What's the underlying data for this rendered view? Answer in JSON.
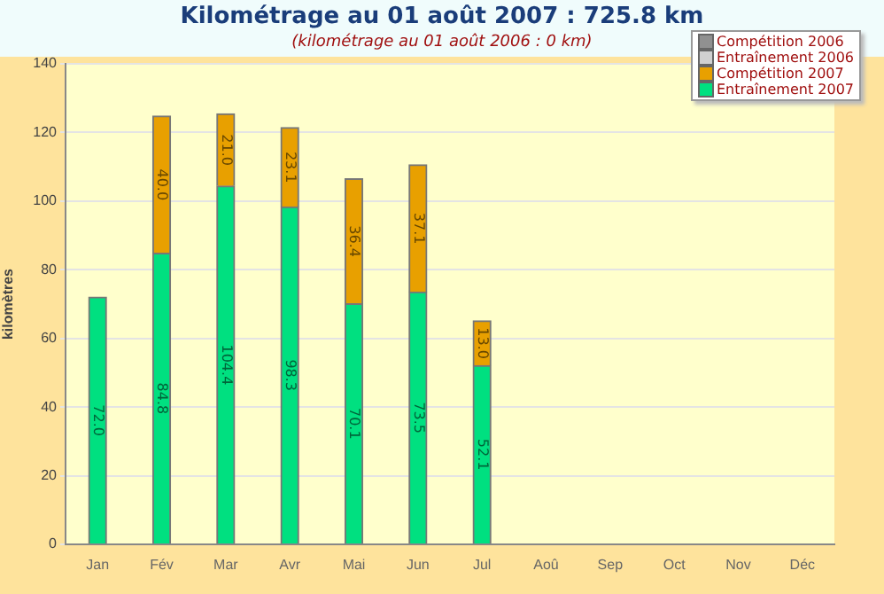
{
  "chart_data": {
    "type": "bar",
    "title": "Kilométrage au 01 août 2007 : 725.8 km",
    "subtitle": "(kilométrage au 01 août 2006 : 0 km)",
    "ylabel": "kilomètres",
    "categories": [
      "Jan",
      "Fév",
      "Mar",
      "Avr",
      "Mai",
      "Jun",
      "Jul",
      "Aoû",
      "Sep",
      "Oct",
      "Nov",
      "Déc"
    ],
    "stacked": true,
    "ylim": [
      0,
      140
    ],
    "yticks": [
      0,
      20,
      40,
      60,
      80,
      100,
      120,
      140
    ],
    "grid": "y",
    "legend": "top right",
    "series": [
      {
        "name": "Entraînement 2006",
        "color": "#d0d0d0",
        "values": [
          null,
          null,
          null,
          null,
          null,
          null,
          null,
          null,
          null,
          null,
          null,
          null
        ]
      },
      {
        "name": "Compétition 2006",
        "color": "#909090",
        "values": [
          null,
          null,
          null,
          null,
          null,
          null,
          null,
          null,
          null,
          null,
          null,
          null
        ]
      },
      {
        "name": "Entraînement 2007",
        "color": "#00e080",
        "values": [
          72.0,
          84.8,
          104.4,
          98.3,
          70.1,
          73.5,
          52.1,
          null,
          null,
          null,
          null,
          null
        ],
        "value_labels": [
          "72.0",
          "84.8",
          "104.4",
          "98.3",
          "70.1",
          "73.5",
          "52.1",
          null,
          null,
          null,
          null,
          null
        ]
      },
      {
        "name": "Compétition 2007",
        "color": "#e8a000",
        "values": [
          null,
          40.0,
          21.0,
          23.1,
          36.4,
          37.1,
          13.0,
          null,
          null,
          null,
          null,
          null
        ],
        "value_labels": [
          null,
          "40.0",
          "21.0",
          "23.1",
          "36.4",
          "37.1",
          "13.0",
          null,
          null,
          null,
          null,
          null
        ]
      }
    ]
  }
}
